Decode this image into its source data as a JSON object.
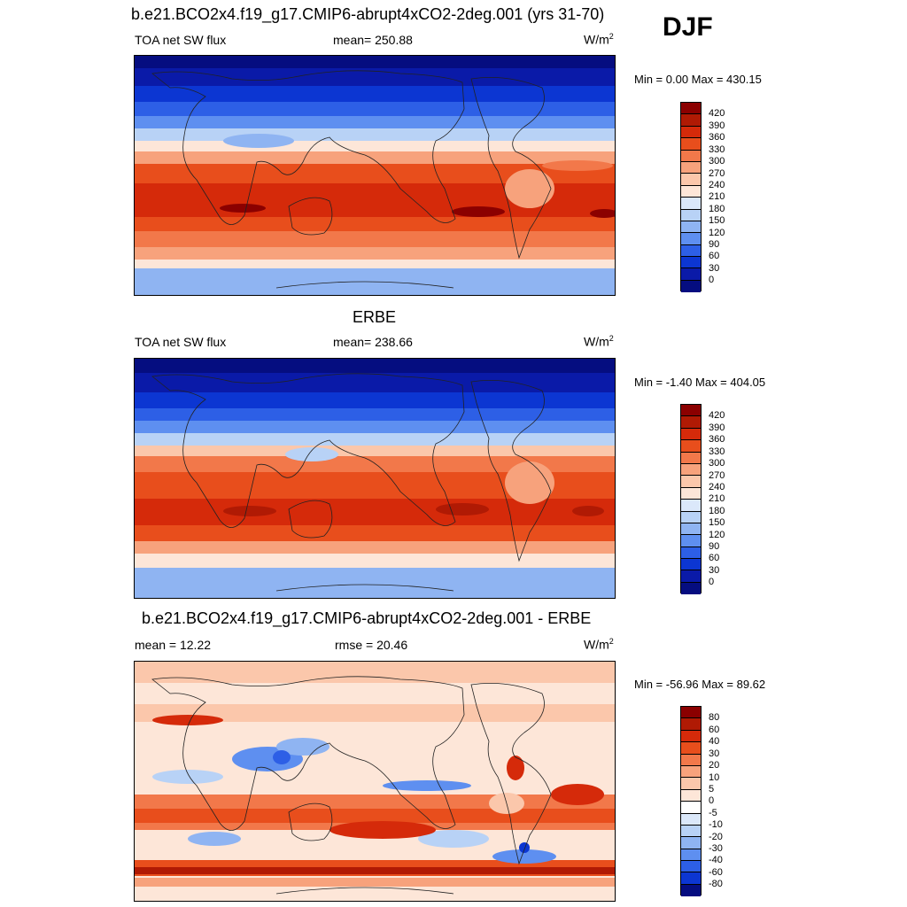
{
  "season": "DJF",
  "units_base": "W/m",
  "units_exp": "2",
  "panels": [
    {
      "title": "b.e21.BCO2x4.f19_g17.CMIP6-abrupt4xCO2-2deg.001 (yrs 31-70)",
      "left_label": "TOA net SW flux",
      "center_label": "mean= 250.88",
      "minmax": "Min =   0.00 Max = 430.15",
      "colorbar_labels": [
        "420",
        "390",
        "360",
        "330",
        "300",
        "270",
        "240",
        "210",
        "180",
        "150",
        "120",
        "90",
        "60",
        "30",
        "0"
      ]
    },
    {
      "title": "ERBE",
      "left_label": "TOA net SW flux",
      "center_label": "mean= 238.66",
      "minmax": "Min =  -1.40 Max = 404.05",
      "colorbar_labels": [
        "420",
        "390",
        "360",
        "330",
        "300",
        "270",
        "240",
        "210",
        "180",
        "150",
        "120",
        "90",
        "60",
        "30",
        "0"
      ]
    },
    {
      "title": "b.e21.BCO2x4.f19_g17.CMIP6-abrupt4xCO2-2deg.001 - ERBE",
      "left_label": "mean =  12.22",
      "center_label": "rmse =  20.46",
      "minmax": "Min = -56.96 Max =  89.62",
      "colorbar_labels": [
        "80",
        "60",
        "40",
        "30",
        "20",
        "10",
        "5",
        "0",
        "-5",
        "-10",
        "-20",
        "-30",
        "-40",
        "-60",
        "-80"
      ]
    }
  ],
  "colors": {
    "abs_scale": [
      "#8b0000",
      "#b01a04",
      "#d52a0a",
      "#e84e1c",
      "#f2784a",
      "#f7a27c",
      "#fbc7ab",
      "#fde6d8",
      "#dbe8fa",
      "#b8d2f6",
      "#8fb4f2",
      "#5e8ff0",
      "#2d5fe6",
      "#0c36d2",
      "#0a1aa8",
      "#050d80"
    ],
    "diff_scale": [
      "#8b0000",
      "#b01a04",
      "#d52a0a",
      "#e84e1c",
      "#f2784a",
      "#f7a27c",
      "#fbc7ab",
      "#fde6d8",
      "#ffffff",
      "#dbe8fa",
      "#b8d2f6",
      "#8fb4f2",
      "#5e8ff0",
      "#2d5fe6",
      "#0c36d2",
      "#050d80"
    ]
  }
}
